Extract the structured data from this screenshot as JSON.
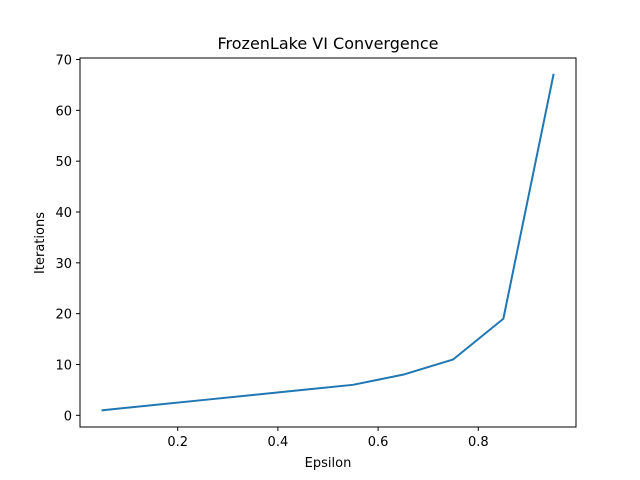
{
  "chart_data": {
    "type": "line",
    "title": "FrozenLake VI Convergence",
    "xlabel": "Epsilon",
    "ylabel": "Iterations",
    "xlim": [
      0.005,
      0.995
    ],
    "ylim": [
      -2.3,
      70.3
    ],
    "xticks": [
      0.2,
      0.4,
      0.6,
      0.8
    ],
    "xtick_labels": [
      "0.2",
      "0.4",
      "0.6",
      "0.8"
    ],
    "yticks": [
      0,
      10,
      20,
      30,
      40,
      50,
      60,
      70
    ],
    "ytick_labels": [
      "0",
      "10",
      "20",
      "30",
      "40",
      "50",
      "60",
      "70"
    ],
    "grid": false,
    "series": [
      {
        "color": "#1f77b4",
        "x": [
          0.05,
          0.15,
          0.25,
          0.35,
          0.45,
          0.55,
          0.65,
          0.75,
          0.85,
          0.95
        ],
        "y": [
          1,
          2,
          3,
          4,
          5,
          6,
          8,
          11,
          19,
          67
        ]
      }
    ]
  }
}
